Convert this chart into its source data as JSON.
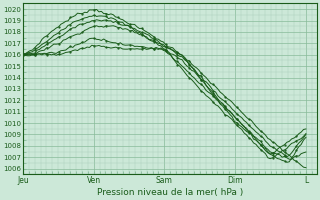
{
  "title": "Pression niveau de la mer( hPa )",
  "ylabel_ticks": [
    1006,
    1007,
    1008,
    1009,
    1010,
    1011,
    1012,
    1013,
    1014,
    1015,
    1016,
    1017,
    1018,
    1019,
    1020
  ],
  "ylim": [
    1005.5,
    1020.5
  ],
  "xlim": [
    0,
    4.15
  ],
  "xtick_positions": [
    0.0,
    1.0,
    2.0,
    3.0,
    4.0
  ],
  "xtick_labels": [
    "Jeu",
    "Ven",
    "Sam",
    "Dim",
    "L"
  ],
  "bg_color": "#cce8d8",
  "grid_minor_color": "#aaccbb",
  "grid_major_color": "#88bb99",
  "line_color": "#1a5c1a",
  "line_width": 0.7,
  "marker_size": 1.2,
  "lines": [
    {
      "x": [
        0.0,
        0.15,
        0.3,
        0.5,
        0.75,
        1.0,
        1.25,
        1.5,
        1.75,
        2.0,
        2.25,
        2.5,
        2.75,
        3.0,
        3.25,
        3.5,
        3.75,
        4.0
      ],
      "y": [
        1016.0,
        1016.5,
        1017.5,
        1018.5,
        1019.5,
        1020.0,
        1019.5,
        1018.8,
        1018.0,
        1017.0,
        1016.0,
        1014.5,
        1013.0,
        1011.5,
        1010.0,
        1008.5,
        1007.2,
        1006.0
      ]
    },
    {
      "x": [
        0.0,
        0.15,
        0.3,
        0.5,
        0.75,
        1.0,
        1.25,
        1.5,
        1.75,
        2.0,
        2.25,
        2.5,
        2.75,
        3.0,
        3.25,
        3.5,
        3.75,
        4.0
      ],
      "y": [
        1016.0,
        1016.3,
        1017.0,
        1018.0,
        1019.0,
        1019.5,
        1019.2,
        1018.5,
        1017.8,
        1016.8,
        1015.8,
        1014.2,
        1012.5,
        1011.0,
        1009.5,
        1008.0,
        1007.0,
        1009.0
      ]
    },
    {
      "x": [
        0.0,
        0.15,
        0.3,
        0.5,
        0.75,
        1.0,
        1.25,
        1.5,
        1.75,
        2.0,
        2.25,
        2.5,
        2.75,
        3.0,
        3.25,
        3.5,
        3.75,
        4.0
      ],
      "y": [
        1016.0,
        1016.1,
        1016.8,
        1017.5,
        1018.5,
        1019.0,
        1019.0,
        1018.5,
        1017.5,
        1016.5,
        1015.5,
        1014.0,
        1012.2,
        1010.5,
        1009.0,
        1007.5,
        1006.8,
        1007.5
      ]
    },
    {
      "x": [
        0.0,
        0.15,
        0.3,
        0.5,
        0.75,
        1.0,
        1.25,
        1.5,
        1.75,
        2.0,
        2.25,
        2.5,
        2.75,
        3.0,
        3.25,
        3.5,
        3.75,
        4.0
      ],
      "y": [
        1016.0,
        1016.0,
        1016.5,
        1017.0,
        1017.8,
        1018.5,
        1018.5,
        1018.2,
        1017.5,
        1016.8,
        1016.0,
        1014.0,
        1012.0,
        1010.2,
        1008.8,
        1007.2,
        1006.5,
        1008.8
      ]
    },
    {
      "x": [
        0.0,
        0.5,
        1.0,
        1.5,
        2.0,
        2.5,
        3.0,
        3.5,
        4.0
      ],
      "y": [
        1016.0,
        1016.2,
        1017.5,
        1016.8,
        1016.5,
        1013.5,
        1010.5,
        1007.2,
        1009.5
      ]
    },
    {
      "x": [
        0.0,
        0.5,
        1.0,
        1.5,
        2.0,
        2.5,
        3.0,
        3.5,
        4.0
      ],
      "y": [
        1016.0,
        1016.0,
        1016.8,
        1016.5,
        1016.5,
        1013.0,
        1010.0,
        1006.8,
        1009.0
      ]
    }
  ]
}
